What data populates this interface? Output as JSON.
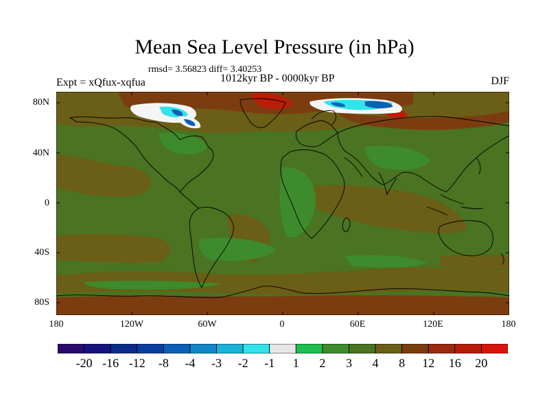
{
  "title": "Mean Sea Level Pressure (in hPa)",
  "stats_text": "rmsd= 3.56823  diff= 3.40253",
  "experiment_text": "Expt = xQfux-xqfua",
  "period_text": "1012kyr BP - 0000kyr BP",
  "season_text": "DJF",
  "lat_labels": [
    "80N",
    "40N",
    "0",
    "40S",
    "80S"
  ],
  "lon_labels": [
    "180",
    "120W",
    "60W",
    "0",
    "60E",
    "120E",
    "180"
  ],
  "colorbar": {
    "levels": [
      "-20",
      "-16",
      "-12",
      "-8",
      "-4",
      "-3",
      "-2",
      "-1",
      "1",
      "2",
      "3",
      "4",
      "8",
      "12",
      "16",
      "20"
    ],
    "colors": [
      "#2a0a6e",
      "#16137f",
      "#0a2a8c",
      "#0a3e9e",
      "#0b5fb5",
      "#1187c9",
      "#18b3d8",
      "#31e3ea",
      "#e6e6e6",
      "#1fbe50",
      "#3d8b2c",
      "#4a7322",
      "#6b5e16",
      "#7b3d10",
      "#9b2a0e",
      "#b81d08",
      "#d8140a"
    ]
  },
  "map_colors": {
    "background": "#4a7322",
    "brown": "#6b5e16",
    "rust": "#7b3d10",
    "red": "#b81d08",
    "green": "#3d8b2c",
    "cyan": "#31e3ea",
    "blue": "#0b5fb5",
    "white": "#f5f5f5"
  }
}
